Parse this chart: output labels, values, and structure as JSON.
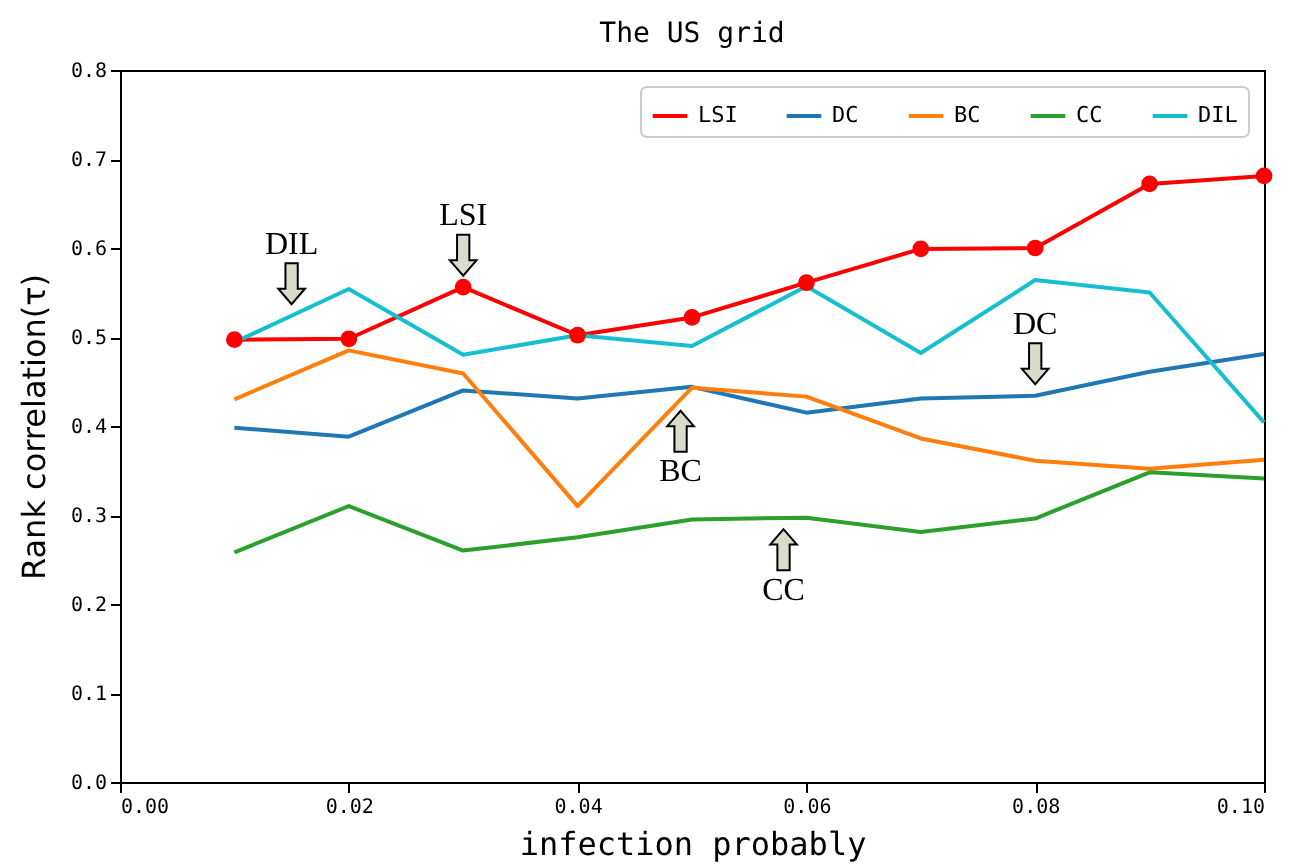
{
  "chart_data": {
    "type": "line",
    "title": "The US grid",
    "xlabel": "infection probably",
    "ylabel": "Rank correlation(τ)",
    "x": [
      0.01,
      0.02,
      0.03,
      0.04,
      0.05,
      0.06,
      0.07,
      0.08,
      0.09,
      0.1
    ],
    "series": [
      {
        "name": "LSI",
        "color": "#ff0000",
        "marker": "circle",
        "values": [
          0.497,
          0.498,
          0.556,
          0.502,
          0.522,
          0.561,
          0.599,
          0.6,
          0.672,
          0.681
        ]
      },
      {
        "name": "DC",
        "color": "#1f77b4",
        "values": [
          0.398,
          0.388,
          0.44,
          0.431,
          0.444,
          0.415,
          0.431,
          0.434,
          0.461,
          0.481
        ]
      },
      {
        "name": "BC",
        "color": "#ff7f0e",
        "values": [
          0.43,
          0.485,
          0.459,
          0.31,
          0.443,
          0.433,
          0.386,
          0.361,
          0.352,
          0.362
        ]
      },
      {
        "name": "CC",
        "color": "#2ca02c",
        "values": [
          0.258,
          0.31,
          0.26,
          0.275,
          0.295,
          0.297,
          0.281,
          0.296,
          0.348,
          0.341
        ]
      },
      {
        "name": "DIL",
        "color": "#17becf",
        "values": [
          0.494,
          0.554,
          0.48,
          0.502,
          0.49,
          0.557,
          0.482,
          0.564,
          0.55,
          0.404
        ]
      }
    ],
    "annotations": [
      {
        "text": "DIL",
        "x": 0.015,
        "y": 0.524
      },
      {
        "text": "LSI",
        "x": 0.03,
        "y": 0.556
      },
      {
        "text": "BC",
        "x": 0.049,
        "y": 0.43
      },
      {
        "text": "CC",
        "x": 0.058,
        "y": 0.297
      },
      {
        "text": "DC",
        "x": 0.08,
        "y": 0.434
      }
    ],
    "xlim": [
      0,
      0.1
    ],
    "xticks": [
      {
        "value": 0,
        "label": "0.00"
      },
      0.02,
      0.04,
      0.06,
      0.08,
      {
        "value": 0.1,
        "label": "0.10"
      }
    ],
    "ylim": [
      0,
      0.8
    ],
    "yticks": [
      {
        "value": 0,
        "label": "0.0"
      },
      0.1,
      0.2,
      0.3,
      0.4,
      0.5,
      0.6,
      0.7,
      0.8
    ],
    "grid": false,
    "legend": "top right"
  }
}
